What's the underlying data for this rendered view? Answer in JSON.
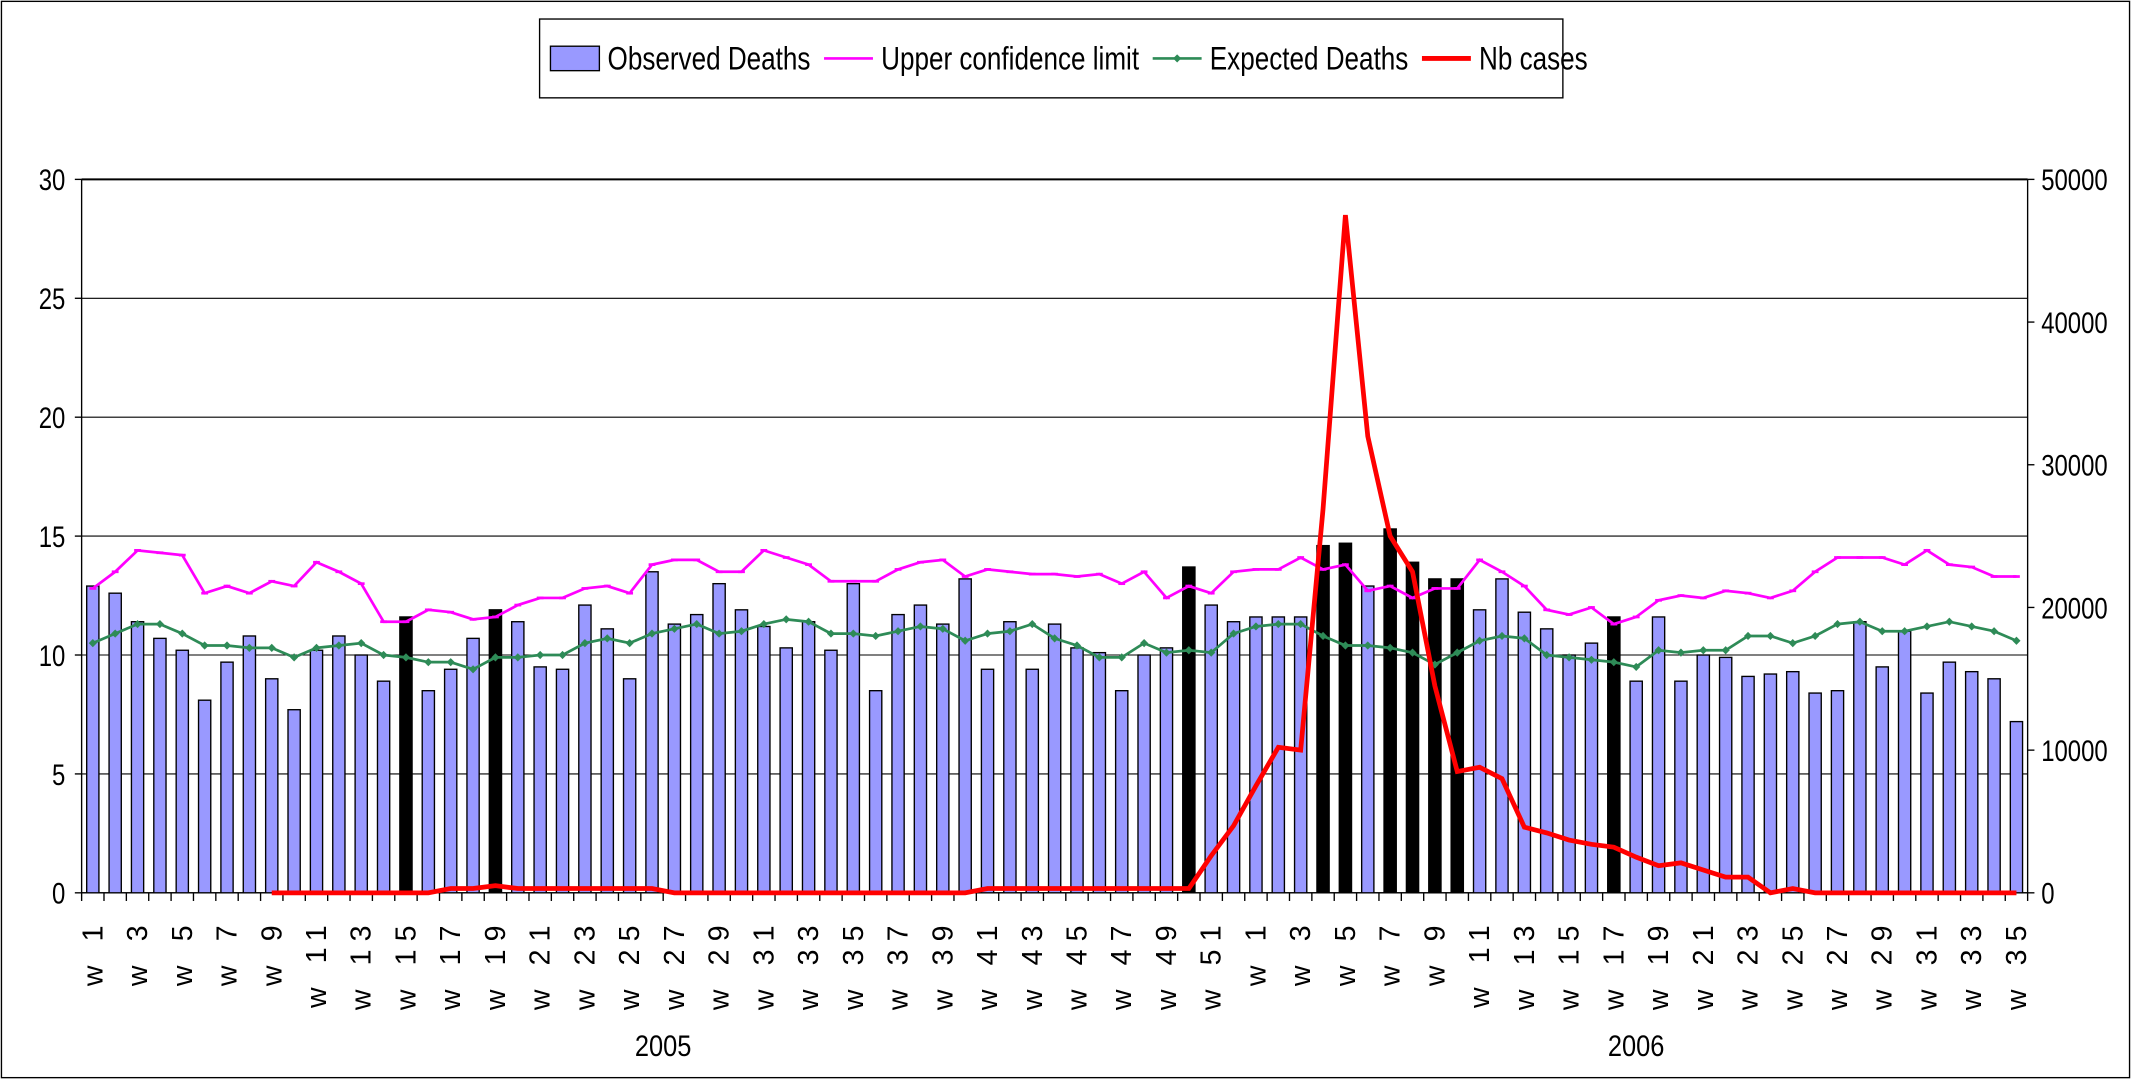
{
  "chart_data": {
    "type": "bar_line",
    "categories": [
      "w 1",
      null,
      "w 3",
      null,
      "w 5",
      null,
      "w 7",
      null,
      "w 9",
      null,
      "w 11",
      null,
      "w 13",
      null,
      "w 15",
      null,
      "w 17",
      null,
      "w 19",
      null,
      "w 21",
      null,
      "w 23",
      null,
      "w 25",
      null,
      "w 27",
      null,
      "w 29",
      null,
      "w 31",
      null,
      "w 33",
      null,
      "w 35",
      null,
      "w 37",
      null,
      "w 39",
      null,
      "w 41",
      null,
      "w 43",
      null,
      "w 45",
      null,
      "w 47",
      null,
      "w 49",
      null,
      "w 51",
      null,
      "w 1",
      null,
      "w 3",
      null,
      "w 5",
      null,
      "w 7",
      null,
      "w 9",
      null,
      "w 11",
      null,
      "w 13",
      null,
      "w 15",
      null,
      "w 17",
      null,
      "w 19",
      null,
      "w 21",
      null,
      "w 23",
      null,
      "w 25",
      null,
      "w 27",
      null,
      "w 29",
      null,
      "w 31",
      null,
      "w 33",
      null,
      "w 35"
    ],
    "groups": [
      {
        "name": "2005",
        "count": 52
      },
      {
        "name": "2006",
        "count": 35
      }
    ],
    "series": [
      {
        "name": "Observed Deaths",
        "kind": "bar",
        "color": "#9999ff",
        "edge": "#000000",
        "values": [
          12.9,
          12.6,
          11.4,
          10.7,
          10.2,
          8.1,
          9.7,
          10.8,
          9.0,
          7.7,
          10.2,
          10.8,
          10.0,
          8.9,
          11.6,
          8.5,
          9.4,
          10.7,
          11.9,
          11.4,
          9.5,
          9.4,
          12.1,
          11.1,
          9.0,
          13.5,
          11.3,
          11.7,
          13.0,
          11.9,
          11.2,
          10.3,
          11.4,
          10.2,
          13.0,
          8.5,
          11.7,
          12.1,
          11.3,
          13.2,
          9.4,
          11.4,
          9.4,
          11.3,
          10.3,
          10.1,
          8.5,
          10.0,
          10.3,
          13.7,
          12.1,
          11.4,
          11.6,
          11.6,
          11.6,
          14.6,
          14.7,
          12.9,
          15.3,
          13.9,
          13.2,
          13.2,
          11.9,
          13.2,
          11.8,
          11.1,
          10.0,
          10.5,
          11.6,
          8.9,
          11.6,
          8.9,
          10.0,
          9.9,
          9.1,
          9.2,
          9.3,
          8.4,
          8.5,
          11.4,
          9.5,
          11.0,
          8.4,
          9.7,
          9.3,
          9.0,
          7.2
        ],
        "colors": [
          "#9999ff",
          "#9999ff",
          "#9999ff",
          "#9999ff",
          "#9999ff",
          "#9999ff",
          "#9999ff",
          "#9999ff",
          "#9999ff",
          "#9999ff",
          "#9999ff",
          "#9999ff",
          "#9999ff",
          "#9999ff",
          "#000000",
          "#9999ff",
          "#9999ff",
          "#9999ff",
          "#000000",
          "#9999ff",
          "#9999ff",
          "#9999ff",
          "#9999ff",
          "#9999ff",
          "#9999ff",
          "#9999ff",
          "#9999ff",
          "#9999ff",
          "#9999ff",
          "#9999ff",
          "#9999ff",
          "#9999ff",
          "#9999ff",
          "#9999ff",
          "#9999ff",
          "#9999ff",
          "#9999ff",
          "#9999ff",
          "#9999ff",
          "#9999ff",
          "#9999ff",
          "#9999ff",
          "#9999ff",
          "#9999ff",
          "#9999ff",
          "#9999ff",
          "#9999ff",
          "#9999ff",
          "#9999ff",
          "#000000",
          "#9999ff",
          "#9999ff",
          "#9999ff",
          "#9999ff",
          "#9999ff",
          "#000000",
          "#000000",
          "#9999ff",
          "#000000",
          "#000000",
          "#000000",
          "#000000",
          "#9999ff",
          "#9999ff",
          "#9999ff",
          "#9999ff",
          "#9999ff",
          "#9999ff",
          "#000000",
          "#9999ff",
          "#9999ff",
          "#9999ff",
          "#9999ff",
          "#9999ff",
          "#9999ff",
          "#9999ff",
          "#9999ff",
          "#9999ff",
          "#9999ff",
          "#9999ff",
          "#9999ff",
          "#9999ff",
          "#9999ff",
          "#9999ff",
          "#9999ff",
          "#9999ff",
          "#9999ff"
        ]
      },
      {
        "name": "Upper confidence limit",
        "kind": "line",
        "marker": "dash",
        "color": "#ff00ff",
        "values": [
          12.8,
          13.5,
          14.4,
          14.3,
          14.2,
          12.6,
          12.9,
          12.6,
          13.1,
          12.9,
          13.9,
          13.5,
          13.0,
          11.4,
          11.4,
          11.9,
          11.8,
          11.5,
          11.6,
          12.1,
          12.4,
          12.4,
          12.8,
          12.9,
          12.6,
          13.8,
          14.0,
          14.0,
          13.5,
          13.5,
          14.4,
          14.1,
          13.8,
          13.1,
          13.1,
          13.1,
          13.6,
          13.9,
          14.0,
          13.3,
          13.6,
          13.5,
          13.4,
          13.4,
          13.3,
          13.4,
          13.0,
          13.5,
          12.4,
          12.9,
          12.6,
          13.5,
          13.6,
          13.6,
          14.1,
          13.6,
          13.8,
          12.7,
          12.9,
          12.4,
          12.8,
          12.8,
          14.0,
          13.5,
          12.9,
          11.9,
          11.7,
          12.0,
          11.3,
          11.6,
          12.3,
          12.5,
          12.4,
          12.7,
          12.6,
          12.4,
          12.7,
          13.5,
          14.1,
          14.1,
          14.1,
          13.8,
          14.4,
          13.8,
          13.7,
          13.3,
          13.3
        ]
      },
      {
        "name": "Expected Deaths",
        "kind": "line",
        "marker": "diamond",
        "color": "#2e8b57",
        "values": [
          10.5,
          10.9,
          11.3,
          11.3,
          10.9,
          10.4,
          10.4,
          10.3,
          10.3,
          9.9,
          10.3,
          10.4,
          10.5,
          10.0,
          9.9,
          9.7,
          9.7,
          9.4,
          9.9,
          9.9,
          10.0,
          10.0,
          10.5,
          10.7,
          10.5,
          10.9,
          11.1,
          11.3,
          10.9,
          11.0,
          11.3,
          11.5,
          11.4,
          10.9,
          10.9,
          10.8,
          11.0,
          11.2,
          11.1,
          10.6,
          10.9,
          11.0,
          11.3,
          10.7,
          10.4,
          9.9,
          9.9,
          10.5,
          10.1,
          10.2,
          10.1,
          10.9,
          11.2,
          11.3,
          11.3,
          10.8,
          10.4,
          10.4,
          10.3,
          10.1,
          9.6,
          10.1,
          10.6,
          10.8,
          10.7,
          10.0,
          9.9,
          9.8,
          9.7,
          9.5,
          10.2,
          10.1,
          10.2,
          10.2,
          10.8,
          10.8,
          10.5,
          10.8,
          11.3,
          11.4,
          11.0,
          11.0,
          11.2,
          11.4,
          11.2,
          11.0,
          10.6
        ]
      },
      {
        "name": "Nb cases",
        "kind": "line",
        "marker": "none",
        "color": "#ff0000",
        "axis": "y2",
        "values": [
          null,
          null,
          null,
          null,
          null,
          null,
          null,
          null,
          0,
          0,
          0,
          0,
          0,
          0,
          0,
          0,
          300,
          300,
          500,
          300,
          300,
          300,
          300,
          300,
          300,
          300,
          0,
          0,
          0,
          0,
          0,
          0,
          0,
          0,
          0,
          0,
          0,
          0,
          0,
          0,
          300,
          300,
          300,
          300,
          300,
          300,
          300,
          300,
          300,
          300,
          2600,
          4700,
          7500,
          10200,
          10000,
          26900,
          47500,
          32000,
          25000,
          22500,
          14500,
          8500,
          8800,
          8000,
          4600,
          4200,
          3700,
          3400,
          3200,
          2500,
          1900,
          2100,
          1600,
          1100,
          1100,
          0,
          300,
          0,
          0,
          0,
          0,
          0,
          0,
          0,
          0,
          0,
          0
        ]
      }
    ],
    "ylim": [
      0,
      30
    ],
    "yticks": [
      0,
      5,
      10,
      15,
      20,
      25,
      30
    ],
    "y2lim": [
      0,
      50000
    ],
    "y2ticks": [
      0,
      10000,
      20000,
      30000,
      40000,
      50000
    ],
    "grid": true,
    "legend": "top"
  }
}
